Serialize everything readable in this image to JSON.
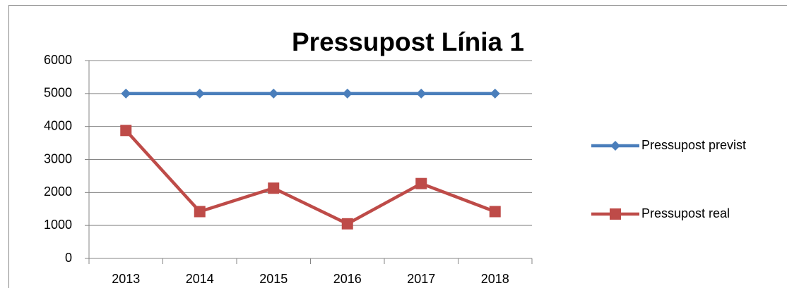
{
  "chart_data": {
    "type": "line",
    "title": "Pressupost Línia 1",
    "categories": [
      "2013",
      "2014",
      "2015",
      "2016",
      "2017",
      "2018"
    ],
    "series": [
      {
        "name": "Pressupost previst",
        "color": "#4a7ebb",
        "marker": "diamond",
        "values": [
          5000,
          5000,
          5000,
          5000,
          5000,
          5000
        ]
      },
      {
        "name": "Pressupost real",
        "color": "#be4b48",
        "marker": "square",
        "values": [
          3880,
          1420,
          2130,
          1050,
          2270,
          1420
        ]
      }
    ],
    "ylim": [
      0,
      6000
    ],
    "yticks": [
      0,
      1000,
      2000,
      3000,
      4000,
      5000,
      6000
    ],
    "grid": true,
    "legend": "right"
  }
}
